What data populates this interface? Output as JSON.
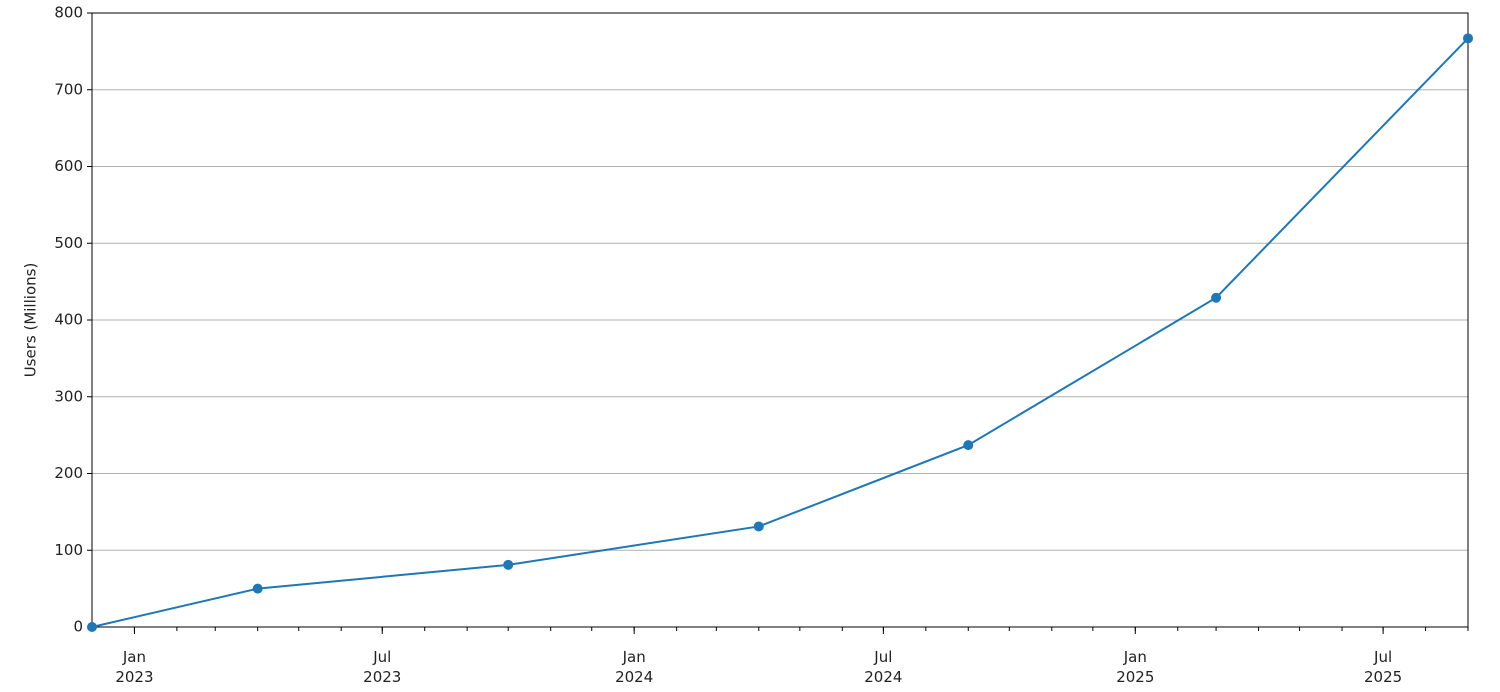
{
  "chart_data": {
    "type": "line",
    "y_label": "Users (Millions)",
    "x": [
      "2022-12",
      "2023-04",
      "2023-10",
      "2024-04",
      "2024-09",
      "2025-03",
      "2025-09"
    ],
    "series": [
      {
        "color": "#1f77b4",
        "values": [
          0,
          50,
          81,
          131,
          237,
          429,
          767
        ]
      }
    ],
    "xlim": [
      "2022-12",
      "2025-09"
    ],
    "xticks": [
      {
        "value": "2023-01",
        "label": "Jan 2023"
      },
      {
        "value": "2023-07",
        "label": "Jul 2023"
      },
      {
        "value": "2024-01",
        "label": "Jan 2024"
      },
      {
        "value": "2024-07",
        "label": "Jul 2024"
      },
      {
        "value": "2025-01",
        "label": "Jan 2025"
      },
      {
        "value": "2025-07",
        "label": "Jul 2025"
      }
    ],
    "xminorticks": [
      "2022-12",
      "2023-01",
      "2023-02",
      "2023-03",
      "2023-04",
      "2023-05",
      "2023-06",
      "2023-07",
      "2023-08",
      "2023-09",
      "2023-10",
      "2023-11",
      "2023-12",
      "2024-01",
      "2024-02",
      "2024-03",
      "2024-04",
      "2024-05",
      "2024-06",
      "2024-07",
      "2024-08",
      "2024-09",
      "2024-10",
      "2024-11",
      "2024-12",
      "2025-01",
      "2025-02",
      "2025-03",
      "2025-04",
      "2025-05",
      "2025-06",
      "2025-07",
      "2025-08",
      "2025-09"
    ],
    "ylim": [
      0,
      800
    ],
    "yticks": [
      0,
      100,
      200,
      300,
      400,
      500,
      600,
      700,
      800
    ],
    "grid": "y"
  }
}
